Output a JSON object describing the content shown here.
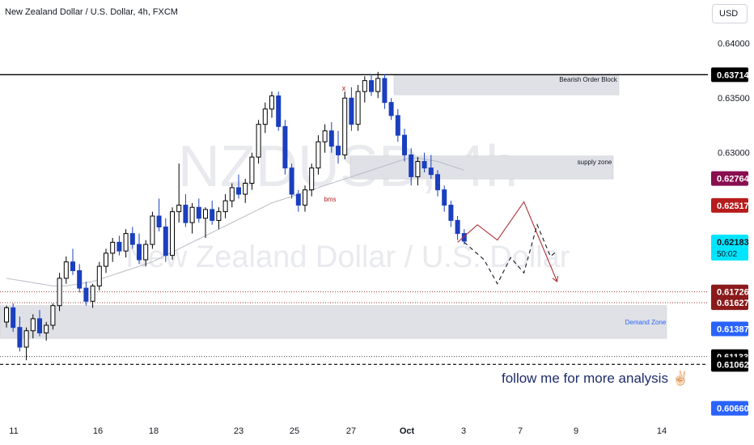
{
  "header": {
    "title": "New Zealand Dollar / U.S. Dollar, 4h, FXCM"
  },
  "currency": "USD",
  "watermark": {
    "symbol": "NZDUSD, 4h",
    "name": "New Zealand Dollar / U.S. Dollar"
  },
  "annotations": {
    "bearish_ob": "Bearish Order Block",
    "supply_zone": "supply zone",
    "demand_zone": "Demand Zone",
    "bms": "bms",
    "x_mark": "x",
    "follow": "follow me for more analysis ✌🏻"
  },
  "price_tags": [
    {
      "price": 0.63714,
      "label": "0.63714",
      "bg": "#000000",
      "fg": "#ffffff"
    },
    {
      "price": 0.62764,
      "label": "0.62764",
      "bg": "#880e4f",
      "fg": "#ffffff"
    },
    {
      "price": 0.62517,
      "label": "0.62517",
      "bg": "#b71c1c",
      "fg": "#ffffff"
    },
    {
      "price": 0.62183,
      "label": "0.62183",
      "sub": "50:02",
      "bg": "#00e5ff",
      "fg": "#131722"
    },
    {
      "price": 0.61726,
      "label": "0.61726",
      "bg": "#8b1a1a",
      "fg": "#ffffff"
    },
    {
      "price": 0.61627,
      "label": "0.61627",
      "bg": "#8b1a1a",
      "fg": "#ffffff"
    },
    {
      "price": 0.61387,
      "label": "0.61387",
      "bg": "#2962ff",
      "fg": "#ffffff"
    },
    {
      "price": 0.61133,
      "label": "0.61133",
      "bg": "#000000",
      "fg": "#ffffff"
    },
    {
      "price": 0.61062,
      "label": "0.61062",
      "bg": "#000000",
      "fg": "#ffffff"
    },
    {
      "price": 0.6066,
      "label": "0.60660",
      "bg": "#2962ff",
      "fg": "#ffffff"
    }
  ],
  "colors": {
    "up": "#000000",
    "down": "#1a3fbf",
    "zone": "#dfe1e6",
    "path_red": "#b0323a",
    "path_black": "#131722"
  },
  "chart_data": {
    "type": "candlestick",
    "title": "New Zealand Dollar / U.S. Dollar, 4h, FXCM",
    "x_ticks": [
      "11",
      "16",
      "18",
      "23",
      "25",
      "27",
      "Oct",
      "3",
      "7",
      "9",
      "14"
    ],
    "y_ticks": [
      "0.64000",
      "0.63500",
      "0.63000"
    ],
    "y_range": [
      0.6062,
      0.6425
    ],
    "zones": [
      {
        "name": "Bearish Order Block",
        "top": 0.6371,
        "bottom": 0.6353
      },
      {
        "name": "supply zone",
        "top": 0.6297,
        "bottom": 0.6276
      },
      {
        "name": "Demand Zone",
        "top": 0.616,
        "bottom": 0.613
      }
    ],
    "horizontal_levels": [
      0.63714,
      0.61726,
      0.61627,
      0.61133,
      0.61062
    ],
    "candles": [
      [
        0.6145,
        0.616,
        0.614,
        0.6158
      ],
      [
        0.6158,
        0.6162,
        0.6136,
        0.614
      ],
      [
        0.614,
        0.615,
        0.6118,
        0.6122
      ],
      [
        0.6122,
        0.614,
        0.611,
        0.6137
      ],
      [
        0.6137,
        0.6152,
        0.613,
        0.6148
      ],
      [
        0.6148,
        0.6156,
        0.6132,
        0.6135
      ],
      [
        0.6135,
        0.6145,
        0.6128,
        0.6142
      ],
      [
        0.6142,
        0.6162,
        0.6138,
        0.616
      ],
      [
        0.616,
        0.619,
        0.6155,
        0.6185
      ],
      [
        0.6185,
        0.6205,
        0.618,
        0.62
      ],
      [
        0.62,
        0.6212,
        0.6188,
        0.6192
      ],
      [
        0.6192,
        0.6198,
        0.6172,
        0.6176
      ],
      [
        0.6176,
        0.6182,
        0.616,
        0.6164
      ],
      [
        0.6164,
        0.618,
        0.6158,
        0.6178
      ],
      [
        0.6178,
        0.62,
        0.6174,
        0.6196
      ],
      [
        0.6196,
        0.6212,
        0.619,
        0.6208
      ],
      [
        0.6208,
        0.6222,
        0.62,
        0.6218
      ],
      [
        0.6218,
        0.6224,
        0.6206,
        0.621
      ],
      [
        0.621,
        0.623,
        0.6204,
        0.6226
      ],
      [
        0.6226,
        0.6232,
        0.6212,
        0.6216
      ],
      [
        0.6216,
        0.6226,
        0.6198,
        0.6202
      ],
      [
        0.6202,
        0.622,
        0.6196,
        0.6216
      ],
      [
        0.6216,
        0.6246,
        0.6212,
        0.6242
      ],
      [
        0.6242,
        0.6258,
        0.6228,
        0.6232
      ],
      [
        0.6232,
        0.624,
        0.62,
        0.6206
      ],
      [
        0.6206,
        0.625,
        0.6202,
        0.6246
      ],
      [
        0.6246,
        0.629,
        0.6236,
        0.6252
      ],
      [
        0.6252,
        0.6262,
        0.6232,
        0.6236
      ],
      [
        0.6236,
        0.6254,
        0.6226,
        0.625
      ],
      [
        0.625,
        0.6258,
        0.6236,
        0.624
      ],
      [
        0.624,
        0.625,
        0.6222,
        0.6248
      ],
      [
        0.6248,
        0.6256,
        0.6234,
        0.6238
      ],
      [
        0.6238,
        0.625,
        0.623,
        0.6246
      ],
      [
        0.6246,
        0.6262,
        0.624,
        0.6256
      ],
      [
        0.6256,
        0.6272,
        0.625,
        0.6268
      ],
      [
        0.6268,
        0.628,
        0.6258,
        0.6262
      ],
      [
        0.6262,
        0.6276,
        0.6254,
        0.6272
      ],
      [
        0.6272,
        0.63,
        0.6266,
        0.6296
      ],
      [
        0.6296,
        0.633,
        0.629,
        0.6326
      ],
      [
        0.6326,
        0.6346,
        0.6318,
        0.634
      ],
      [
        0.634,
        0.6356,
        0.6332,
        0.6352
      ],
      [
        0.6352,
        0.6356,
        0.632,
        0.6324
      ],
      [
        0.6324,
        0.633,
        0.628,
        0.6286
      ],
      [
        0.6286,
        0.629,
        0.6258,
        0.6262
      ],
      [
        0.6262,
        0.6266,
        0.6246,
        0.6252
      ],
      [
        0.6252,
        0.627,
        0.6246,
        0.6266
      ],
      [
        0.6266,
        0.629,
        0.626,
        0.6286
      ],
      [
        0.6286,
        0.6316,
        0.628,
        0.631
      ],
      [
        0.631,
        0.6326,
        0.63,
        0.632
      ],
      [
        0.632,
        0.6328,
        0.63,
        0.6306
      ],
      [
        0.6306,
        0.632,
        0.629,
        0.6298
      ],
      [
        0.6298,
        0.6356,
        0.6294,
        0.635
      ],
      [
        0.635,
        0.636,
        0.632,
        0.6326
      ],
      [
        0.6326,
        0.6362,
        0.632,
        0.6356
      ],
      [
        0.6356,
        0.637,
        0.6346,
        0.6366
      ],
      [
        0.6366,
        0.6372,
        0.6352,
        0.6356
      ],
      [
        0.6356,
        0.6374,
        0.635,
        0.6368
      ],
      [
        0.6368,
        0.6372,
        0.634,
        0.6346
      ],
      [
        0.6346,
        0.635,
        0.633,
        0.6334
      ],
      [
        0.6334,
        0.634,
        0.631,
        0.6316
      ],
      [
        0.6316,
        0.6322,
        0.6292,
        0.6298
      ],
      [
        0.6298,
        0.6304,
        0.627,
        0.6278
      ],
      [
        0.6278,
        0.6296,
        0.627,
        0.6292
      ],
      [
        0.6292,
        0.63,
        0.6282,
        0.6286
      ],
      [
        0.6286,
        0.6298,
        0.6276,
        0.628
      ],
      [
        0.628,
        0.6284,
        0.626,
        0.6266
      ],
      [
        0.6266,
        0.627,
        0.6246,
        0.6252
      ],
      [
        0.6252,
        0.6256,
        0.6232,
        0.6238
      ],
      [
        0.6238,
        0.6242,
        0.622,
        0.6226
      ],
      [
        0.6226,
        0.623,
        0.6216,
        0.6219
      ]
    ],
    "moving_average": [
      [
        0.6185,
        0.6184,
        0.6183,
        0.6182,
        0.6181,
        0.618,
        0.6179,
        0.6178,
        0.6178,
        0.6178,
        0.6179,
        0.618,
        0.6181,
        0.6182,
        0.6184,
        0.6186,
        0.6188,
        0.619,
        0.6192,
        0.6194,
        0.6196,
        0.6198,
        0.62,
        0.6203,
        0.6206,
        0.6209,
        0.6212,
        0.6215,
        0.6218,
        0.6221,
        0.6224,
        0.6227,
        0.623,
        0.6233,
        0.6236,
        0.6239,
        0.6242,
        0.6245,
        0.6248,
        0.6251,
        0.6254,
        0.6256,
        0.6258,
        0.626,
        0.6262,
        0.6264,
        0.6266,
        0.6268,
        0.627,
        0.6272,
        0.6274,
        0.6276,
        0.6278,
        0.628,
        0.6282,
        0.6284,
        0.6286,
        0.6288,
        0.629,
        0.6292,
        0.6294,
        0.6295,
        0.6295,
        0.6294,
        0.6293,
        0.6292,
        0.629,
        0.6288,
        0.6286,
        0.6284
      ]
    ],
    "projection_paths": [
      {
        "name": "red-path",
        "points": [
          [
            68,
            0.6218
          ],
          [
            71,
            0.6234
          ],
          [
            74,
            0.622
          ],
          [
            78,
            0.6255
          ],
          [
            83,
            0.6182
          ]
        ]
      },
      {
        "name": "dashed-path",
        "points": [
          [
            69,
            0.6218
          ],
          [
            72,
            0.6202
          ],
          [
            74,
            0.618
          ],
          [
            76,
            0.6204
          ],
          [
            78,
            0.619
          ],
          [
            80,
            0.6234
          ],
          [
            82,
            0.6205
          ],
          [
            83,
            0.621
          ]
        ]
      }
    ]
  }
}
